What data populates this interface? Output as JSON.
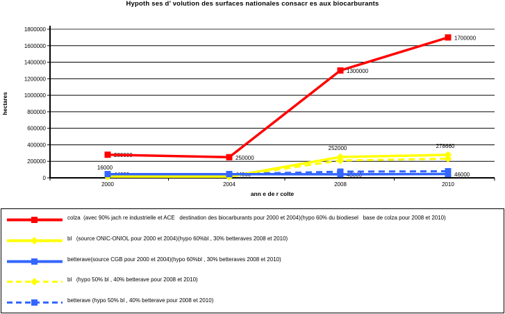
{
  "chart_data": {
    "type": "line",
    "title": "Hypoth ses d’ volution des surfaces nationales consacr es aux biocarburants",
    "xlabel": "ann e de r colte",
    "ylabel": "hectares",
    "categories": [
      "2000",
      "2004",
      "2008",
      "2010"
    ],
    "ylim": [
      0,
      1800000
    ],
    "ytick_step": 200000,
    "yticks": [
      "0",
      "200000",
      "400000",
      "600000",
      "800000",
      "1000000",
      "1200000",
      "1400000",
      "1600000",
      "1800000"
    ],
    "grid": true,
    "legend_position": "bottom",
    "plot_background": "#ffffff",
    "top_gridline_color": "#9a9a9a",
    "series": [
      {
        "id": "colza",
        "name": "colza  (avec 90% jach re industrielle et ACE   destination des biocarburants pour 2000 et 2004)(hypo 60% du biodiesel   base de colza pour 2008 et 2010)",
        "color": "#ff0000",
        "dash": false,
        "marker": "square",
        "values": [
          280000,
          250000,
          1300000,
          1700000
        ]
      },
      {
        "id": "ble-60",
        "name": "bl   (source ONIC-ONIOL pour 2000 et 2004)(hypo 60%bl , 30% betteraves 2008 et 2010)",
        "color": "#ffff00",
        "dash": false,
        "marker": "diamond",
        "values": [
          16000,
          14000,
          252000,
          278660
        ]
      },
      {
        "id": "betterave-30",
        "name": "betterave(source CGB pour 2000 et 2004)(hypo 60%bl , 30% betteraves 2008 et 2010)",
        "color": "#3366ff",
        "dash": false,
        "marker": "square",
        "values": [
          44600,
          44860,
          43000,
          46000
        ]
      },
      {
        "id": "ble-50",
        "name": "bl   (hypo 50% bl , 40% betterave pour 2008 et 2010)",
        "color": "#ffff00",
        "dash": true,
        "marker": "diamond",
        "values": [
          16000,
          14000,
          210000,
          232000
        ],
        "estimated": true
      },
      {
        "id": "betterave-40",
        "name": "betterave (hypo 50% bl , 40% betterave pour 2008 et 2010)",
        "color": "#3366ff",
        "dash": true,
        "marker": "square",
        "values": [
          44600,
          44860,
          75000,
          80000
        ],
        "estimated": true
      }
    ],
    "point_labels": [
      {
        "text": "280000",
        "series_index": 0,
        "xi": 0,
        "pos": "right",
        "behind": true
      },
      {
        "text": "250000",
        "series_index": 0,
        "xi": 1,
        "pos": "right",
        "behind": false
      },
      {
        "text": "1300000",
        "series_index": 0,
        "xi": 2,
        "pos": "right",
        "behind": false
      },
      {
        "text": "1700000",
        "series_index": 0,
        "xi": 3,
        "pos": "right",
        "behind": false
      },
      {
        "text": "16000",
        "series_index": 1,
        "xi": 0,
        "pos": "above",
        "behind": false
      },
      {
        "text": "252000",
        "series_index": 1,
        "xi": 2,
        "pos": "above",
        "behind": false
      },
      {
        "text": "278660",
        "series_index": 1,
        "xi": 3,
        "pos": "above",
        "behind": true
      },
      {
        "text": "44600",
        "series_index": 2,
        "xi": 0,
        "pos": "right",
        "behind": true
      },
      {
        "text": "44860",
        "series_index": 2,
        "xi": 1,
        "pos": "right",
        "behind": true
      },
      {
        "text": "43000",
        "series_index": 2,
        "xi": 2,
        "pos": "right",
        "behind": true
      },
      {
        "text": "46000",
        "series_index": 2,
        "xi": 3,
        "pos": "right",
        "behind": false
      }
    ]
  }
}
